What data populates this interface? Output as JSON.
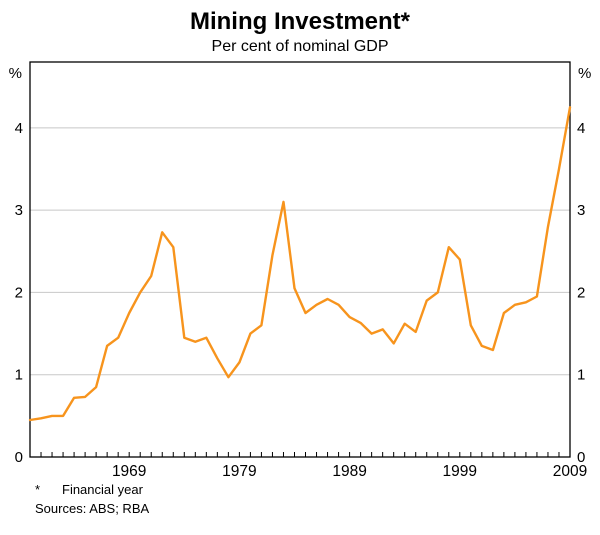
{
  "page": {
    "title": "Mining Investment*",
    "subtitle": "Per cent of nominal GDP",
    "footnote_marker": "*",
    "footnote_text": "Financial year",
    "sources": "Sources: ABS; RBA"
  },
  "chart_data": {
    "type": "line",
    "title": "Mining Investment*",
    "subtitle": "Per cent of nominal GDP",
    "series_name": "Mining investment",
    "unit_label": "%",
    "line_color": "#F7941D",
    "grid_color": "#c8c8c8",
    "frame_color": "#000000",
    "grid": true,
    "ylim": [
      0,
      4.8
    ],
    "yticks": [
      0,
      1,
      2,
      3,
      4
    ],
    "xtick_labels": [
      1969,
      1979,
      1989,
      1999,
      2009
    ],
    "x": [
      1960,
      1961,
      1962,
      1963,
      1964,
      1965,
      1966,
      1967,
      1968,
      1969,
      1970,
      1971,
      1972,
      1973,
      1974,
      1975,
      1976,
      1977,
      1978,
      1979,
      1980,
      1981,
      1982,
      1983,
      1984,
      1985,
      1986,
      1987,
      1988,
      1989,
      1990,
      1991,
      1992,
      1993,
      1994,
      1995,
      1996,
      1997,
      1998,
      1999,
      2000,
      2001,
      2002,
      2003,
      2004,
      2005,
      2006,
      2007,
      2008,
      2009
    ],
    "values": [
      0.45,
      0.47,
      0.5,
      0.5,
      0.72,
      0.73,
      0.85,
      1.35,
      1.45,
      1.75,
      2.0,
      2.2,
      2.73,
      2.55,
      1.45,
      1.4,
      1.45,
      1.2,
      0.97,
      1.15,
      1.5,
      1.6,
      2.45,
      3.1,
      2.05,
      1.75,
      1.85,
      1.92,
      1.85,
      1.7,
      1.63,
      1.5,
      1.55,
      1.38,
      1.62,
      1.52,
      1.9,
      2.0,
      2.55,
      2.4,
      1.6,
      1.35,
      1.3,
      1.75,
      1.85,
      1.88,
      1.95,
      2.8,
      3.5,
      4.25
    ]
  }
}
